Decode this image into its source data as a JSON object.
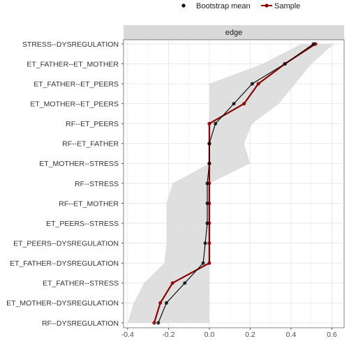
{
  "legend": {
    "position": "top",
    "items": [
      {
        "label": "Bootstrap mean",
        "color": "#000000"
      },
      {
        "label": "Sample",
        "color": "#8b0000"
      }
    ]
  },
  "chart_data": {
    "type": "line",
    "facet_label": "edge",
    "grid": true,
    "xlim": [
      -0.42,
      0.66
    ],
    "x_ticks": [
      -0.4,
      -0.2,
      0.0,
      0.2,
      0.4,
      0.6
    ],
    "x_tick_labels": [
      "-0.4",
      "-0.2",
      "0.0",
      "0.2",
      "0.4",
      "0.6"
    ],
    "categories": [
      "STRESS--DYSREGULATION",
      "ET_FATHER--ET_MOTHER",
      "ET_FATHER--ET_PEERS",
      "ET_MOTHER--ET_PEERS",
      "RF--ET_PEERS",
      "RF--ET_FATHER",
      "ET_MOTHER--STRESS",
      "RF--STRESS",
      "RF--ET_MOTHER",
      "ET_PEERS--STRESS",
      "ET_PEERS--DYSREGULATION",
      "ET_FATHER--DYSREGULATION",
      "ET_FATHER--STRESS",
      "ET_MOTHER--DYSREGULATION",
      "RF--DYSREGULATION"
    ],
    "series": [
      {
        "name": "Bootstrap mean",
        "color": "#000000",
        "values": [
          0.51,
          0.37,
          0.21,
          0.12,
          0.03,
          0.0,
          0.0,
          -0.01,
          -0.01,
          -0.01,
          -0.02,
          -0.03,
          -0.12,
          -0.21,
          -0.25
        ]
      },
      {
        "name": "Sample",
        "color": "#8b0000",
        "values": [
          0.52,
          0.37,
          0.24,
          0.17,
          0.0,
          0.0,
          0.0,
          0.0,
          0.0,
          0.0,
          0.0,
          0.0,
          -0.18,
          -0.24,
          -0.27
        ]
      }
    ],
    "ci_band": {
      "color": "#d9d9d9",
      "lower": [
        0.45,
        0.26,
        0.0,
        0.0,
        0.0,
        0.0,
        0.0,
        -0.18,
        -0.21,
        -0.21,
        -0.21,
        -0.22,
        -0.32,
        -0.37,
        -0.4
      ],
      "upper": [
        0.61,
        0.5,
        0.42,
        0.34,
        0.21,
        0.17,
        0.2,
        0.0,
        0.0,
        0.0,
        0.0,
        0.0,
        0.0,
        0.0,
        0.0
      ]
    }
  }
}
